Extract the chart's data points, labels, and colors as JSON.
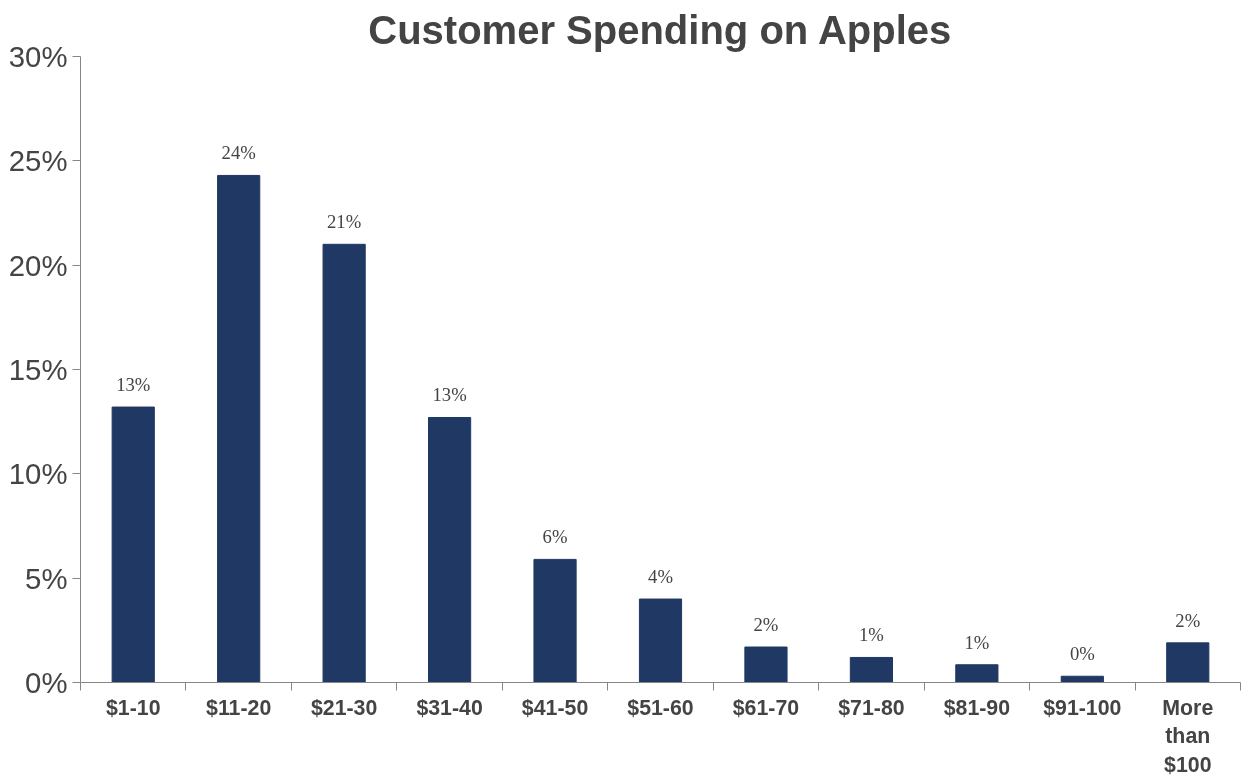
{
  "chart_data": {
    "type": "bar",
    "title": "Customer Spending on Apples",
    "categories": [
      "$1-10",
      "$11-20",
      "$21-30",
      "$31-40",
      "$41-50",
      "$51-60",
      "$61-70",
      "$71-80",
      "$81-90",
      "$91-100",
      "More than $100"
    ],
    "values": [
      13.2,
      24.3,
      21.0,
      12.7,
      5.9,
      4.0,
      1.7,
      1.2,
      0.85,
      0.3,
      1.9
    ],
    "value_labels": [
      "13%",
      "24%",
      "21%",
      "13%",
      "6%",
      "4%",
      "2%",
      "1%",
      "1%",
      "0%",
      "2%"
    ],
    "color": "#203864",
    "ylim": [
      0,
      30
    ],
    "yticks": [
      {
        "value": 0,
        "label": "0%"
      },
      {
        "value": 5,
        "label": "5%"
      },
      {
        "value": 10,
        "label": "10%"
      },
      {
        "value": 15,
        "label": "15%"
      },
      {
        "value": 20,
        "label": "20%"
      },
      {
        "value": 25,
        "label": "25%"
      },
      {
        "value": 30,
        "label": "30%"
      }
    ],
    "grid": false
  }
}
